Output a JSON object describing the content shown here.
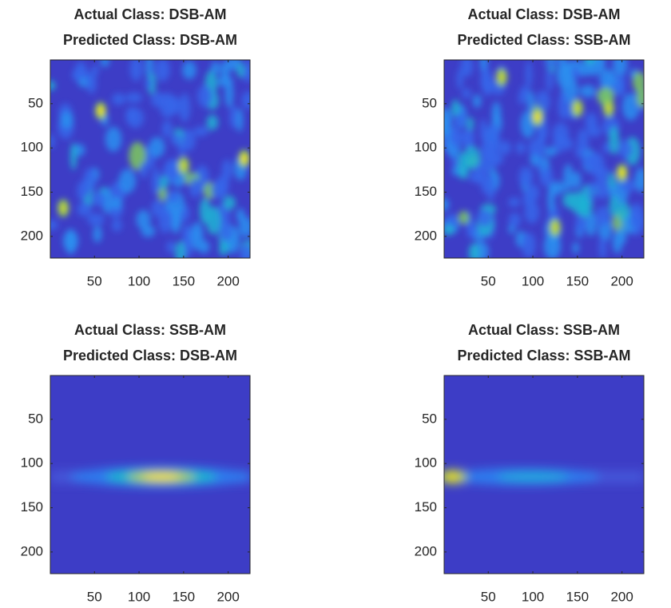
{
  "chart_data": [
    {
      "type": "image",
      "title": [
        "Actual Class: DSB-AM",
        "Predicted Class: DSB-AM"
      ],
      "xlim": [
        0.5,
        224.5
      ],
      "ylim": [
        0.5,
        224.5
      ],
      "y_direction": "reverse",
      "xticks": [
        50,
        100,
        150,
        200
      ],
      "yticks": [
        50,
        100,
        150,
        200
      ]
    },
    {
      "type": "image",
      "title": [
        "Actual Class: DSB-AM",
        "Predicted Class: SSB-AM"
      ],
      "xlim": [
        0.5,
        224.5
      ],
      "ylim": [
        0.5,
        224.5
      ],
      "y_direction": "reverse",
      "xticks": [
        50,
        100,
        150,
        200
      ],
      "yticks": [
        50,
        100,
        150,
        200
      ]
    },
    {
      "type": "image",
      "title": [
        "Actual Class: SSB-AM",
        "Predicted Class: DSB-AM"
      ],
      "xlim": [
        0.5,
        224.5
      ],
      "ylim": [
        0.5,
        224.5
      ],
      "y_direction": "reverse",
      "xticks": [
        50,
        100,
        150,
        200
      ],
      "yticks": [
        50,
        100,
        150,
        200
      ]
    },
    {
      "type": "image",
      "title": [
        "Actual Class: SSB-AM",
        "Predicted Class: SSB-AM"
      ],
      "xlim": [
        0.5,
        224.5
      ],
      "ylim": [
        0.5,
        224.5
      ],
      "y_direction": "reverse",
      "xticks": [
        50,
        100,
        150,
        200
      ],
      "yticks": [
        50,
        100,
        150,
        200
      ]
    }
  ]
}
